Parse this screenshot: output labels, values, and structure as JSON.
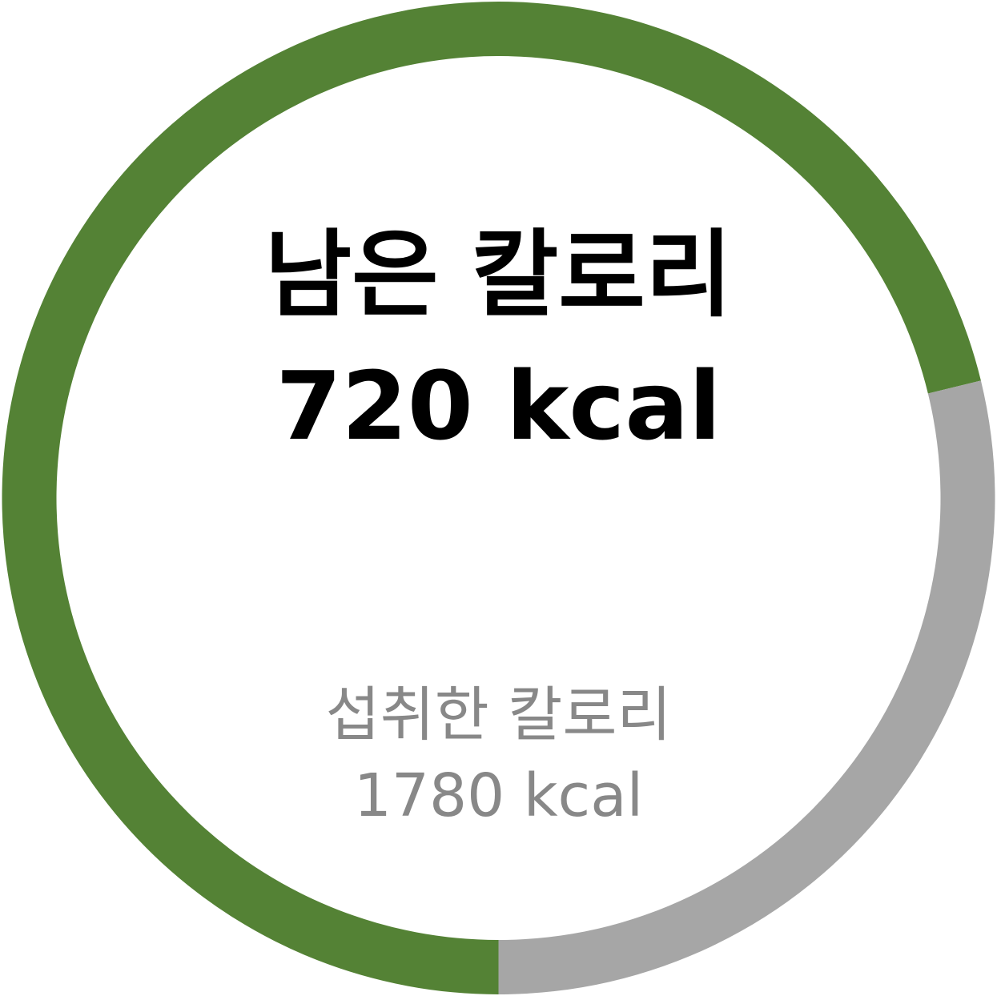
{
  "chart_data": {
    "type": "pie",
    "style": "donut",
    "segments": [
      {
        "name": "섭취한 칼로리",
        "value": 1780,
        "color": "#548235"
      },
      {
        "name": "남은 칼로리",
        "value": 720,
        "color": "#A6A6A6"
      }
    ],
    "total": 2500,
    "start_angle": "bottom-center",
    "direction": "clockwise"
  },
  "remaining": {
    "label": "남은 칼로리",
    "value": "720 kcal"
  },
  "consumed": {
    "label": "섭취한 칼로리",
    "value": "1780 kcal"
  }
}
